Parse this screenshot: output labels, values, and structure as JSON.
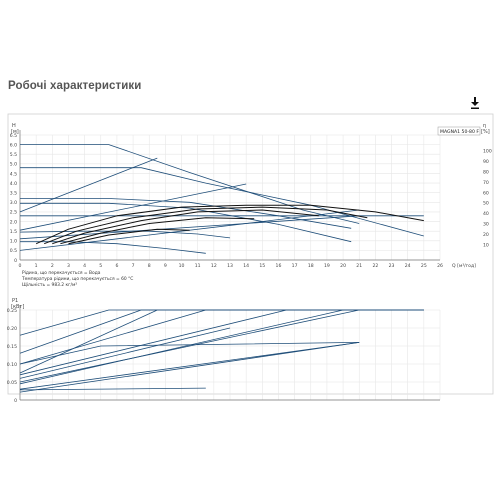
{
  "page": {
    "title": "Робочі характеристики",
    "download_icon": "download-icon"
  },
  "colors": {
    "curve_blue": "#1f4e79",
    "curve_black": "#111111",
    "grid": "#e6e6e6",
    "axis_text": "#444444"
  },
  "chart_data": [
    {
      "type": "line",
      "name_label": "MAGNA1 50-80 F",
      "y_axis_label": "H",
      "y_unit": "[м]",
      "x_unit": "Q [м³/год]",
      "right_axis_unit": "η",
      "right_axis_unit2": "[%]",
      "xlim": [
        0,
        26
      ],
      "ylim": [
        0,
        6.5
      ],
      "x_ticks": [
        "0",
        "1",
        "2",
        "3",
        "4",
        "5",
        "6",
        "7",
        "8",
        "9",
        "10",
        "11",
        "12",
        "13",
        "14",
        "15",
        "16",
        "17",
        "18",
        "19",
        "20",
        "21",
        "22",
        "23",
        "24",
        "25",
        "26"
      ],
      "y_ticks": [
        "0",
        "0.5",
        "1.0",
        "1.5",
        "2.0",
        "2.5",
        "3.0",
        "3.5",
        "4.0",
        "4.5",
        "5.0",
        "5.5",
        "6.0",
        "6.5"
      ],
      "eta_ticks": [
        "10",
        "20",
        "30",
        "40",
        "50",
        "60",
        "70",
        "80",
        "90",
        "100"
      ],
      "notes": [
        "Рідина, що перекачується = Вода",
        "Температура рідини, що перекачується = 60 °C",
        "Щільність = 983.2 кг/м³"
      ],
      "series": [
        {
          "color": "blue",
          "x": [
            0,
            5.5,
            10.5,
            17.5,
            21
          ],
          "y": [
            6.0,
            6.0,
            4.55,
            2.6,
            1.9
          ]
        },
        {
          "color": "blue",
          "x": [
            0,
            7.5,
            11.5,
            18,
            25
          ],
          "y": [
            4.8,
            4.8,
            4.0,
            2.85,
            1.25
          ]
        },
        {
          "color": "blue",
          "x": [
            0,
            5.5,
            10.5,
            16,
            20.5
          ],
          "y": [
            3.2,
            3.2,
            3.0,
            2.3,
            1.65
          ]
        },
        {
          "color": "blue",
          "x": [
            0,
            5.5,
            10.5,
            16,
            20.5
          ],
          "y": [
            2.95,
            2.95,
            2.7,
            1.85,
            0.95
          ]
        },
        {
          "color": "blue",
          "x": [
            0,
            4,
            8,
            11,
            13
          ],
          "y": [
            1.45,
            1.5,
            1.5,
            1.35,
            1.15
          ]
        },
        {
          "color": "blue",
          "x": [
            0,
            3,
            6,
            9,
            11.5
          ],
          "y": [
            0.95,
            0.95,
            0.85,
            0.6,
            0.35
          ]
        },
        {
          "color": "blue",
          "x": [
            0,
            25
          ],
          "y": [
            2.3,
            2.3
          ]
        },
        {
          "color": "blue",
          "x": [
            0,
            21
          ],
          "y": [
            1.1,
            2.3
          ]
        },
        {
          "color": "blue",
          "x": [
            0,
            14
          ],
          "y": [
            1.55,
            3.95
          ]
        },
        {
          "color": "blue",
          "x": [
            0,
            8.5
          ],
          "y": [
            2.5,
            5.3
          ]
        },
        {
          "color": "blue",
          "x": [
            0,
            21
          ],
          "y": [
            0.5,
            2.6
          ]
        },
        {
          "color": "black",
          "x": [
            1,
            3,
            6,
            10,
            14,
            18,
            22,
            25
          ],
          "y": [
            0.85,
            1.6,
            2.3,
            2.75,
            2.85,
            2.85,
            2.5,
            2.05
          ]
        },
        {
          "color": "black",
          "x": [
            1.5,
            3.5,
            7,
            11,
            15,
            19,
            21.5
          ],
          "y": [
            0.85,
            1.5,
            2.2,
            2.65,
            2.75,
            2.6,
            2.2
          ]
        },
        {
          "color": "black",
          "x": [
            2,
            4,
            7.5,
            11,
            15,
            18.5
          ],
          "y": [
            0.85,
            1.4,
            2.05,
            2.5,
            2.6,
            2.3
          ]
        },
        {
          "color": "black",
          "x": [
            2.5,
            5,
            8,
            11.5,
            14.5
          ],
          "y": [
            0.85,
            1.4,
            1.9,
            2.2,
            2.15
          ]
        },
        {
          "color": "black",
          "x": [
            3,
            5.5,
            8.5,
            10.5
          ],
          "y": [
            0.85,
            1.3,
            1.6,
            1.55
          ]
        }
      ]
    },
    {
      "type": "line",
      "y_axis_label": "P1",
      "y_unit": "[кВт]",
      "xlim": [
        0,
        26
      ],
      "ylim": [
        0,
        0.25
      ],
      "y_ticks": [
        "0",
        "0.05",
        "0.10",
        "0.15",
        "0.20",
        "0.25"
      ],
      "series": [
        {
          "color": "blue",
          "x": [
            0,
            5.5,
            25
          ],
          "y": [
            0.18,
            0.25,
            0.25
          ]
        },
        {
          "color": "blue",
          "x": [
            0,
            7.5,
            25
          ],
          "y": [
            0.13,
            0.25,
            0.25
          ]
        },
        {
          "color": "blue",
          "x": [
            0,
            11.5,
            25
          ],
          "y": [
            0.1,
            0.25,
            0.25
          ]
        },
        {
          "color": "blue",
          "x": [
            0,
            16.5,
            25
          ],
          "y": [
            0.07,
            0.25,
            0.25
          ]
        },
        {
          "color": "blue",
          "x": [
            0,
            21,
            25
          ],
          "y": [
            0.05,
            0.25,
            0.25
          ]
        },
        {
          "color": "blue",
          "x": [
            0,
            8.5
          ],
          "y": [
            0.075,
            0.25
          ]
        },
        {
          "color": "blue",
          "x": [
            0,
            13
          ],
          "y": [
            0.06,
            0.2
          ]
        },
        {
          "color": "blue",
          "x": [
            0,
            20
          ],
          "y": [
            0.045,
            0.25
          ]
        },
        {
          "color": "blue",
          "x": [
            0,
            21
          ],
          "y": [
            0.03,
            0.16
          ]
        },
        {
          "color": "blue",
          "x": [
            0,
            21
          ],
          "y": [
            0.022,
            0.16
          ]
        },
        {
          "color": "blue",
          "x": [
            0,
            5,
            21
          ],
          "y": [
            0.1,
            0.15,
            0.16
          ]
        },
        {
          "color": "blue",
          "x": [
            0,
            11.5
          ],
          "y": [
            0.028,
            0.033
          ]
        }
      ]
    }
  ]
}
